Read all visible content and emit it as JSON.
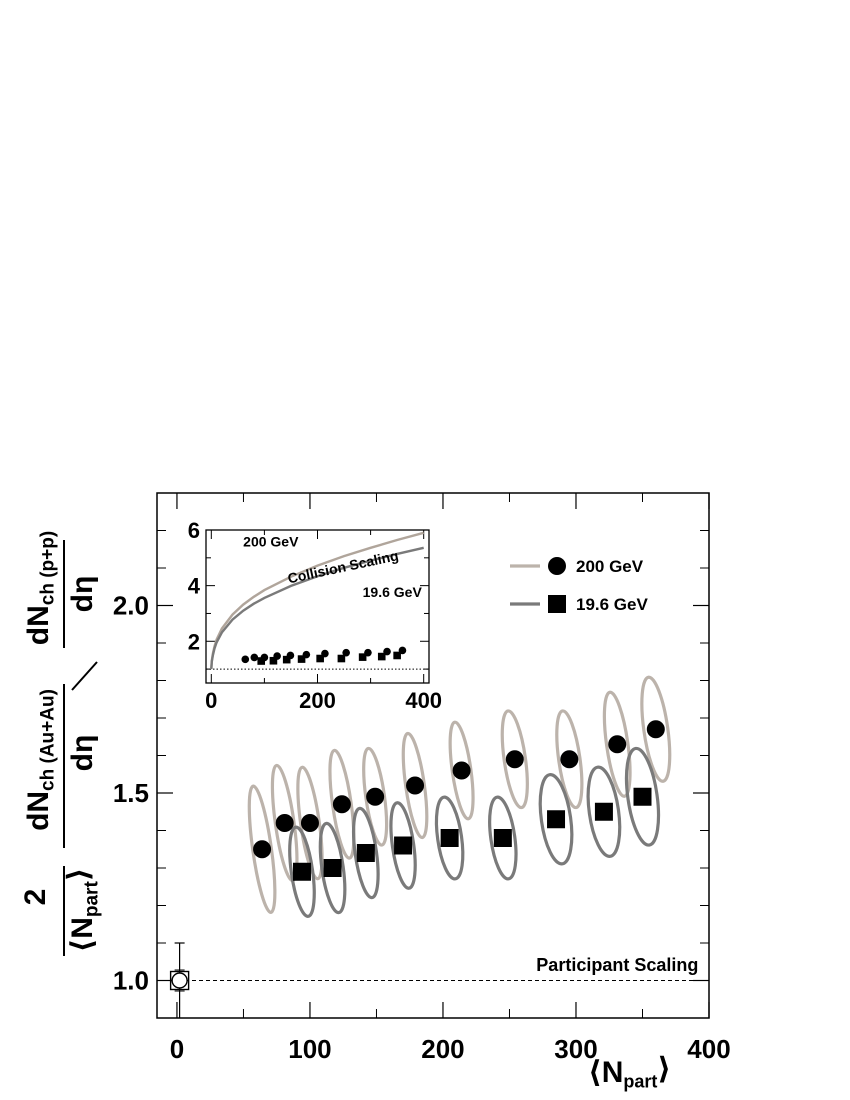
{
  "chart_data": [
    {
      "type": "scatter",
      "xlabel_symbol": "⟨N",
      "xlabel_sub": "part",
      "xlabel_close": "⟩",
      "ylabel": {
        "factor_num": "2",
        "factor_den": "⟨N",
        "factor_den_sub": "part",
        "factor_den_close": "⟩",
        "numer_top": "dN",
        "numer_top_sub": "ch (Au+Au)",
        "numer_bot": "dη",
        "denom_top": "dN",
        "denom_top_sub": "ch (p+p)",
        "denom_bot": "dη"
      },
      "xlim": [
        -15,
        400
      ],
      "ylim": [
        0.9,
        2.3
      ],
      "x_ticks": [
        "0",
        "100",
        "200",
        "300",
        "400"
      ],
      "x_tick_values": [
        0,
        100,
        200,
        300,
        400
      ],
      "y_ticks": [
        "1.0",
        "1.5",
        "2.0"
      ],
      "y_tick_values": [
        1.0,
        1.5,
        2.0
      ],
      "legend": {
        "placement": "top-right",
        "entries": [
          {
            "label": "200 GeV",
            "marker": "circle",
            "ellipse_color": "#bcb3ab"
          },
          {
            "label": "19.6 GeV",
            "marker": "square",
            "ellipse_color": "#7a7a7a"
          }
        ]
      },
      "annotations": [
        {
          "text": "Participant Scaling",
          "x": 395,
          "y": 1.02
        }
      ],
      "reference_line": {
        "y": 1.0,
        "style": "dashed"
      },
      "pp_point": {
        "x": 2,
        "y": 1.0,
        "y_err": 0.1
      },
      "series": [
        {
          "name": "200 GeV",
          "marker": "circle",
          "ellipse_color": "#bcb3ab",
          "points": [
            {
              "x": 64,
              "y": 1.35,
              "ey": 0.17,
              "ex": 7
            },
            {
              "x": 81,
              "y": 1.42,
              "ey": 0.155,
              "ex": 7
            },
            {
              "x": 100,
              "y": 1.42,
              "ey": 0.15,
              "ex": 7
            },
            {
              "x": 124,
              "y": 1.47,
              "ey": 0.145,
              "ex": 7
            },
            {
              "x": 149,
              "y": 1.49,
              "ey": 0.13,
              "ex": 7
            },
            {
              "x": 179,
              "y": 1.52,
              "ey": 0.14,
              "ex": 7
            },
            {
              "x": 214,
              "y": 1.56,
              "ey": 0.13,
              "ex": 7
            },
            {
              "x": 254,
              "y": 1.59,
              "ey": 0.13,
              "ex": 8
            },
            {
              "x": 295,
              "y": 1.59,
              "ey": 0.13,
              "ex": 8
            },
            {
              "x": 331,
              "y": 1.63,
              "ey": 0.14,
              "ex": 8
            },
            {
              "x": 360,
              "y": 1.67,
              "ey": 0.14,
              "ex": 9
            }
          ]
        },
        {
          "name": "19.6 GeV",
          "marker": "square",
          "ellipse_color": "#7a7a7a",
          "points": [
            {
              "x": 94,
              "y": 1.29,
              "ey": 0.12,
              "ex": 8
            },
            {
              "x": 117,
              "y": 1.3,
              "ey": 0.12,
              "ex": 8
            },
            {
              "x": 142,
              "y": 1.34,
              "ey": 0.12,
              "ex": 8
            },
            {
              "x": 170,
              "y": 1.36,
              "ey": 0.115,
              "ex": 8
            },
            {
              "x": 205,
              "y": 1.38,
              "ey": 0.11,
              "ex": 9
            },
            {
              "x": 245,
              "y": 1.38,
              "ey": 0.11,
              "ex": 9
            },
            {
              "x": 285,
              "y": 1.43,
              "ey": 0.12,
              "ex": 11
            },
            {
              "x": 321,
              "y": 1.45,
              "ey": 0.12,
              "ex": 11
            },
            {
              "x": 350,
              "y": 1.49,
              "ey": 0.13,
              "ex": 11
            }
          ]
        }
      ]
    },
    {
      "type": "line",
      "xlim": [
        -10,
        410
      ],
      "ylim": [
        0.5,
        6.0
      ],
      "x_ticks": [
        "0",
        "200",
        "400"
      ],
      "x_tick_values": [
        0,
        200,
        400
      ],
      "y_ticks": [
        "2",
        "4",
        "6"
      ],
      "y_tick_values": [
        2,
        4,
        6
      ],
      "annotations": [
        {
          "text": "200 GeV",
          "x": 60,
          "y": 5.4
        },
        {
          "text": "Collision Scaling",
          "x": 250,
          "y": 4.5,
          "rotate": -12
        },
        {
          "text": "19.6 GeV",
          "x": 285,
          "y": 3.6
        }
      ],
      "reference_line": {
        "y": 1.0,
        "style": "dotted"
      },
      "curves": [
        {
          "name": "200 GeV",
          "color": "#b0a59b",
          "x": [
            0,
            1,
            3,
            6,
            10,
            20,
            40,
            60,
            80,
            100,
            150,
            200,
            250,
            300,
            350,
            400
          ],
          "y": [
            1.0,
            1.3,
            1.56,
            1.82,
            2.06,
            2.46,
            2.96,
            3.32,
            3.6,
            3.84,
            4.32,
            4.72,
            5.06,
            5.36,
            5.64,
            5.9
          ]
        },
        {
          "name": "19.6 GeV",
          "color": "#7a7a7a",
          "x": [
            0,
            1,
            3,
            6,
            10,
            20,
            40,
            60,
            80,
            100,
            150,
            200,
            250,
            300,
            350,
            400
          ],
          "y": [
            1.0,
            1.27,
            1.5,
            1.74,
            1.96,
            2.32,
            2.78,
            3.1,
            3.35,
            3.56,
            3.99,
            4.34,
            4.64,
            4.9,
            5.14,
            5.36
          ]
        }
      ],
      "series": [
        {
          "name": "200 GeV",
          "marker": "circle",
          "x": [
            64,
            81,
            100,
            124,
            149,
            179,
            214,
            254,
            295,
            331,
            360
          ],
          "y": [
            1.35,
            1.42,
            1.42,
            1.47,
            1.49,
            1.52,
            1.56,
            1.59,
            1.59,
            1.63,
            1.67
          ]
        },
        {
          "name": "19.6 GeV",
          "marker": "square",
          "x": [
            94,
            117,
            142,
            170,
            205,
            245,
            285,
            321,
            350
          ],
          "y": [
            1.29,
            1.3,
            1.34,
            1.36,
            1.38,
            1.38,
            1.43,
            1.45,
            1.49
          ]
        }
      ]
    }
  ]
}
